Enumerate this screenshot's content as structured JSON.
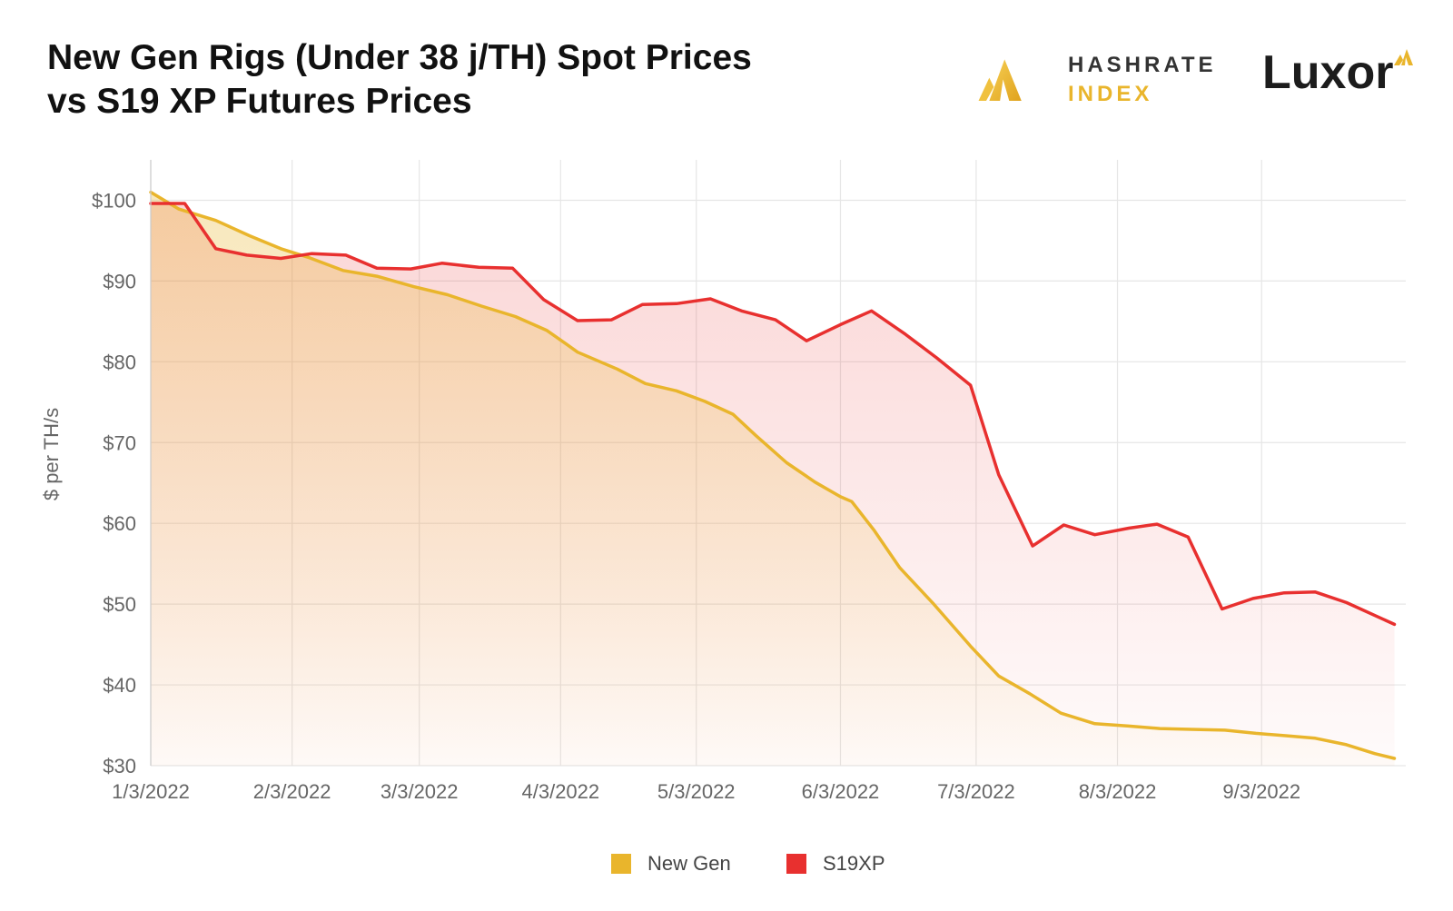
{
  "header": {
    "title_line1": "New Gen Rigs (Under 38 j/TH) Spot Prices",
    "title_line2": "vs S19 XP Futures Prices"
  },
  "logos": {
    "hashrate_line1": "HASHRATE",
    "hashrate_line2": "INDEX",
    "luxor": "Luxor"
  },
  "colors": {
    "new_gen": "#e9b52c",
    "s19xp": "#e8302f",
    "grid": "#e6e6e6",
    "axis_text": "#666666"
  },
  "chart_data": {
    "type": "area",
    "title": "New Gen Rigs (Under 38 j/TH) Spot Prices vs S19 XP Futures Prices",
    "xlabel": "",
    "ylabel": "$ per TH/s",
    "ylim": [
      30,
      105
    ],
    "yticks": [
      30,
      40,
      50,
      60,
      70,
      80,
      90,
      100
    ],
    "ytick_labels": [
      "$30",
      "$40",
      "$50",
      "$60",
      "$70",
      "$80",
      "$90",
      "$100"
    ],
    "xlim": [
      0,
      44.4
    ],
    "xticks": [
      0,
      5,
      9.5,
      14.5,
      19.3,
      24.4,
      29.2,
      34.2,
      39.3
    ],
    "xtick_labels": [
      "1/3/2022",
      "2/3/2022",
      "3/3/2022",
      "4/3/2022",
      "5/3/2022",
      "6/3/2022",
      "7/3/2022",
      "8/3/2022",
      "9/3/2022"
    ],
    "grid": true,
    "legend_position": "bottom-center",
    "series": [
      {
        "name": "New Gen",
        "color": "#e9b52c",
        "points": [
          [
            0,
            101
          ],
          [
            1.0,
            98.9
          ],
          [
            2.3,
            97.5
          ],
          [
            3.5,
            95.6
          ],
          [
            4.6,
            94.0
          ],
          [
            5.6,
            92.9
          ],
          [
            6.8,
            91.3
          ],
          [
            8.0,
            90.6
          ],
          [
            9.3,
            89.3
          ],
          [
            10.5,
            88.3
          ],
          [
            11.7,
            86.9
          ],
          [
            12.9,
            85.6
          ],
          [
            14.0,
            83.9
          ],
          [
            14.7,
            82.2
          ],
          [
            15.1,
            81.2
          ],
          [
            16.5,
            79.1
          ],
          [
            17.5,
            77.3
          ],
          [
            18.6,
            76.4
          ],
          [
            19.6,
            75.1
          ],
          [
            20.6,
            73.5
          ],
          [
            21.4,
            70.9
          ],
          [
            22.5,
            67.5
          ],
          [
            23.5,
            65.1
          ],
          [
            24.4,
            63.3
          ],
          [
            24.8,
            62.7
          ],
          [
            25.6,
            59.1
          ],
          [
            26.5,
            54.5
          ],
          [
            27.7,
            50.0
          ],
          [
            29.0,
            44.8
          ],
          [
            30.0,
            41.1
          ],
          [
            31.1,
            38.9
          ],
          [
            32.2,
            36.5
          ],
          [
            33.4,
            35.2
          ],
          [
            34.6,
            34.9
          ],
          [
            35.7,
            34.6
          ],
          [
            36.8,
            34.5
          ],
          [
            38.0,
            34.4
          ],
          [
            39.1,
            34.0
          ],
          [
            40.2,
            33.7
          ],
          [
            41.2,
            33.4
          ],
          [
            42.3,
            32.6
          ],
          [
            43.3,
            31.5
          ],
          [
            44.0,
            30.9
          ]
        ]
      },
      {
        "name": "S19XP",
        "color": "#e8302f",
        "points": [
          [
            0,
            99.6
          ],
          [
            1.2,
            99.6
          ],
          [
            2.3,
            94.0
          ],
          [
            3.4,
            93.2
          ],
          [
            4.6,
            92.8
          ],
          [
            5.7,
            93.4
          ],
          [
            6.9,
            93.2
          ],
          [
            8.0,
            91.6
          ],
          [
            9.2,
            91.5
          ],
          [
            10.3,
            92.2
          ],
          [
            11.6,
            91.7
          ],
          [
            12.8,
            91.6
          ],
          [
            13.9,
            87.7
          ],
          [
            15.1,
            85.1
          ],
          [
            16.3,
            85.2
          ],
          [
            17.4,
            87.1
          ],
          [
            18.6,
            87.2
          ],
          [
            19.8,
            87.8
          ],
          [
            20.9,
            86.3
          ],
          [
            22.1,
            85.2
          ],
          [
            23.2,
            82.6
          ],
          [
            24.4,
            84.6
          ],
          [
            25.5,
            86.3
          ],
          [
            26.7,
            83.4
          ],
          [
            27.8,
            80.5
          ],
          [
            29.0,
            77.1
          ],
          [
            30.0,
            66.0
          ],
          [
            31.2,
            57.2
          ],
          [
            32.3,
            59.8
          ],
          [
            33.4,
            58.6
          ],
          [
            34.6,
            59.4
          ],
          [
            35.6,
            59.9
          ],
          [
            36.7,
            58.3
          ],
          [
            37.9,
            49.4
          ],
          [
            39.0,
            50.7
          ],
          [
            40.1,
            51.4
          ],
          [
            41.2,
            51.5
          ],
          [
            42.3,
            50.2
          ],
          [
            44.0,
            47.5
          ]
        ]
      }
    ]
  }
}
